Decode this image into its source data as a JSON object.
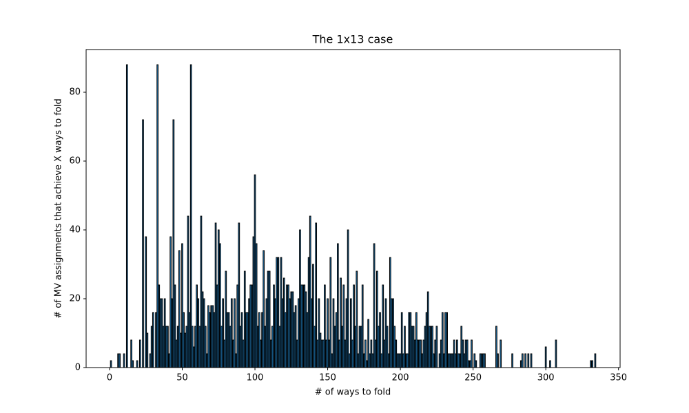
{
  "chart_data": {
    "type": "bar",
    "title": "The 1x13 case",
    "xlabel": "# of ways to fold",
    "ylabel": "# of MV assignments that achieve X ways to fold",
    "color": "#1f77b4",
    "edgecolor": "#000000",
    "bar_width": 0.8,
    "xlim": [
      -16.1,
      351.1
    ],
    "ylim": [
      0,
      92.4
    ],
    "xticks": [
      0,
      50,
      100,
      150,
      200,
      250,
      300,
      350
    ],
    "yticks": [
      0,
      20,
      40,
      60,
      80
    ],
    "x": [
      1,
      6,
      7,
      10,
      12,
      15,
      16,
      19,
      21,
      23,
      25,
      26,
      28,
      29,
      30,
      32,
      33,
      34,
      35,
      36,
      37,
      38,
      39,
      40,
      41,
      42,
      43,
      44,
      45,
      46,
      47,
      48,
      49,
      50,
      51,
      52,
      53,
      54,
      55,
      56,
      57,
      58,
      59,
      60,
      61,
      62,
      63,
      64,
      65,
      66,
      67,
      68,
      69,
      70,
      71,
      72,
      73,
      74,
      75,
      76,
      77,
      78,
      79,
      80,
      81,
      82,
      83,
      84,
      85,
      86,
      87,
      88,
      89,
      90,
      91,
      92,
      93,
      94,
      95,
      96,
      97,
      98,
      99,
      100,
      101,
      102,
      103,
      104,
      105,
      106,
      107,
      108,
      109,
      110,
      111,
      112,
      113,
      114,
      115,
      116,
      117,
      118,
      119,
      120,
      121,
      122,
      123,
      124,
      125,
      126,
      127,
      128,
      129,
      130,
      131,
      132,
      133,
      134,
      135,
      136,
      137,
      138,
      139,
      140,
      141,
      142,
      143,
      144,
      145,
      146,
      147,
      148,
      149,
      150,
      151,
      152,
      153,
      154,
      155,
      156,
      157,
      158,
      159,
      160,
      161,
      162,
      163,
      164,
      165,
      166,
      167,
      168,
      169,
      170,
      171,
      172,
      173,
      174,
      175,
      176,
      177,
      178,
      179,
      180,
      181,
      182,
      183,
      184,
      185,
      186,
      187,
      188,
      189,
      190,
      191,
      192,
      193,
      194,
      195,
      196,
      197,
      198,
      199,
      200,
      201,
      202,
      203,
      204,
      205,
      206,
      207,
      208,
      209,
      210,
      211,
      212,
      213,
      214,
      215,
      216,
      217,
      218,
      219,
      220,
      221,
      222,
      223,
      224,
      225,
      227,
      228,
      229,
      230,
      231,
      232,
      233,
      234,
      235,
      236,
      237,
      238,
      239,
      240,
      241,
      242,
      243,
      244,
      245,
      246,
      247,
      248,
      249,
      251,
      252,
      255,
      256,
      257,
      258,
      266,
      267,
      269,
      277,
      283,
      284,
      286,
      288,
      290,
      300,
      303,
      307,
      331,
      332,
      334
    ],
    "values": [
      2,
      4,
      4,
      4,
      88,
      8,
      2,
      2,
      8,
      72,
      38,
      10,
      4,
      12,
      16,
      16,
      88,
      24,
      20,
      20,
      12,
      20,
      12,
      12,
      4,
      38,
      20,
      72,
      24,
      8,
      12,
      34,
      10,
      36,
      16,
      10,
      12,
      44,
      16,
      88,
      12,
      6,
      12,
      24,
      20,
      12,
      44,
      22,
      20,
      12,
      4,
      18,
      16,
      18,
      18,
      16,
      42,
      24,
      40,
      36,
      12,
      20,
      8,
      28,
      16,
      16,
      12,
      20,
      8,
      20,
      4,
      24,
      42,
      12,
      16,
      8,
      28,
      16,
      16,
      20,
      24,
      24,
      38,
      56,
      36,
      12,
      16,
      8,
      16,
      34,
      12,
      20,
      28,
      28,
      8,
      12,
      24,
      20,
      32,
      32,
      12,
      32,
      20,
      26,
      16,
      24,
      24,
      20,
      22,
      22,
      16,
      18,
      8,
      20,
      40,
      24,
      24,
      24,
      22,
      16,
      32,
      44,
      20,
      30,
      12,
      42,
      8,
      20,
      10,
      8,
      8,
      24,
      8,
      20,
      8,
      32,
      4,
      20,
      12,
      16,
      36,
      8,
      26,
      12,
      24,
      8,
      20,
      40,
      4,
      20,
      8,
      24,
      12,
      28,
      4,
      12,
      12,
      24,
      4,
      8,
      2,
      14,
      4,
      8,
      4,
      36,
      8,
      28,
      12,
      16,
      4,
      24,
      8,
      20,
      12,
      4,
      32,
      20,
      20,
      12,
      8,
      4,
      4,
      4,
      16,
      4,
      12,
      4,
      4,
      16,
      16,
      12,
      12,
      8,
      16,
      8,
      8,
      8,
      4,
      8,
      12,
      16,
      22,
      12,
      12,
      12,
      4,
      8,
      12,
      4,
      8,
      16,
      4,
      16,
      16,
      4,
      4,
      4,
      4,
      8,
      4,
      8,
      4,
      4,
      12,
      8,
      4,
      8,
      8,
      2,
      2,
      8,
      4,
      2,
      4,
      4,
      4,
      4,
      12,
      4,
      8,
      4,
      2,
      4,
      4,
      4,
      4,
      6,
      2,
      8,
      2,
      2,
      4
    ]
  }
}
